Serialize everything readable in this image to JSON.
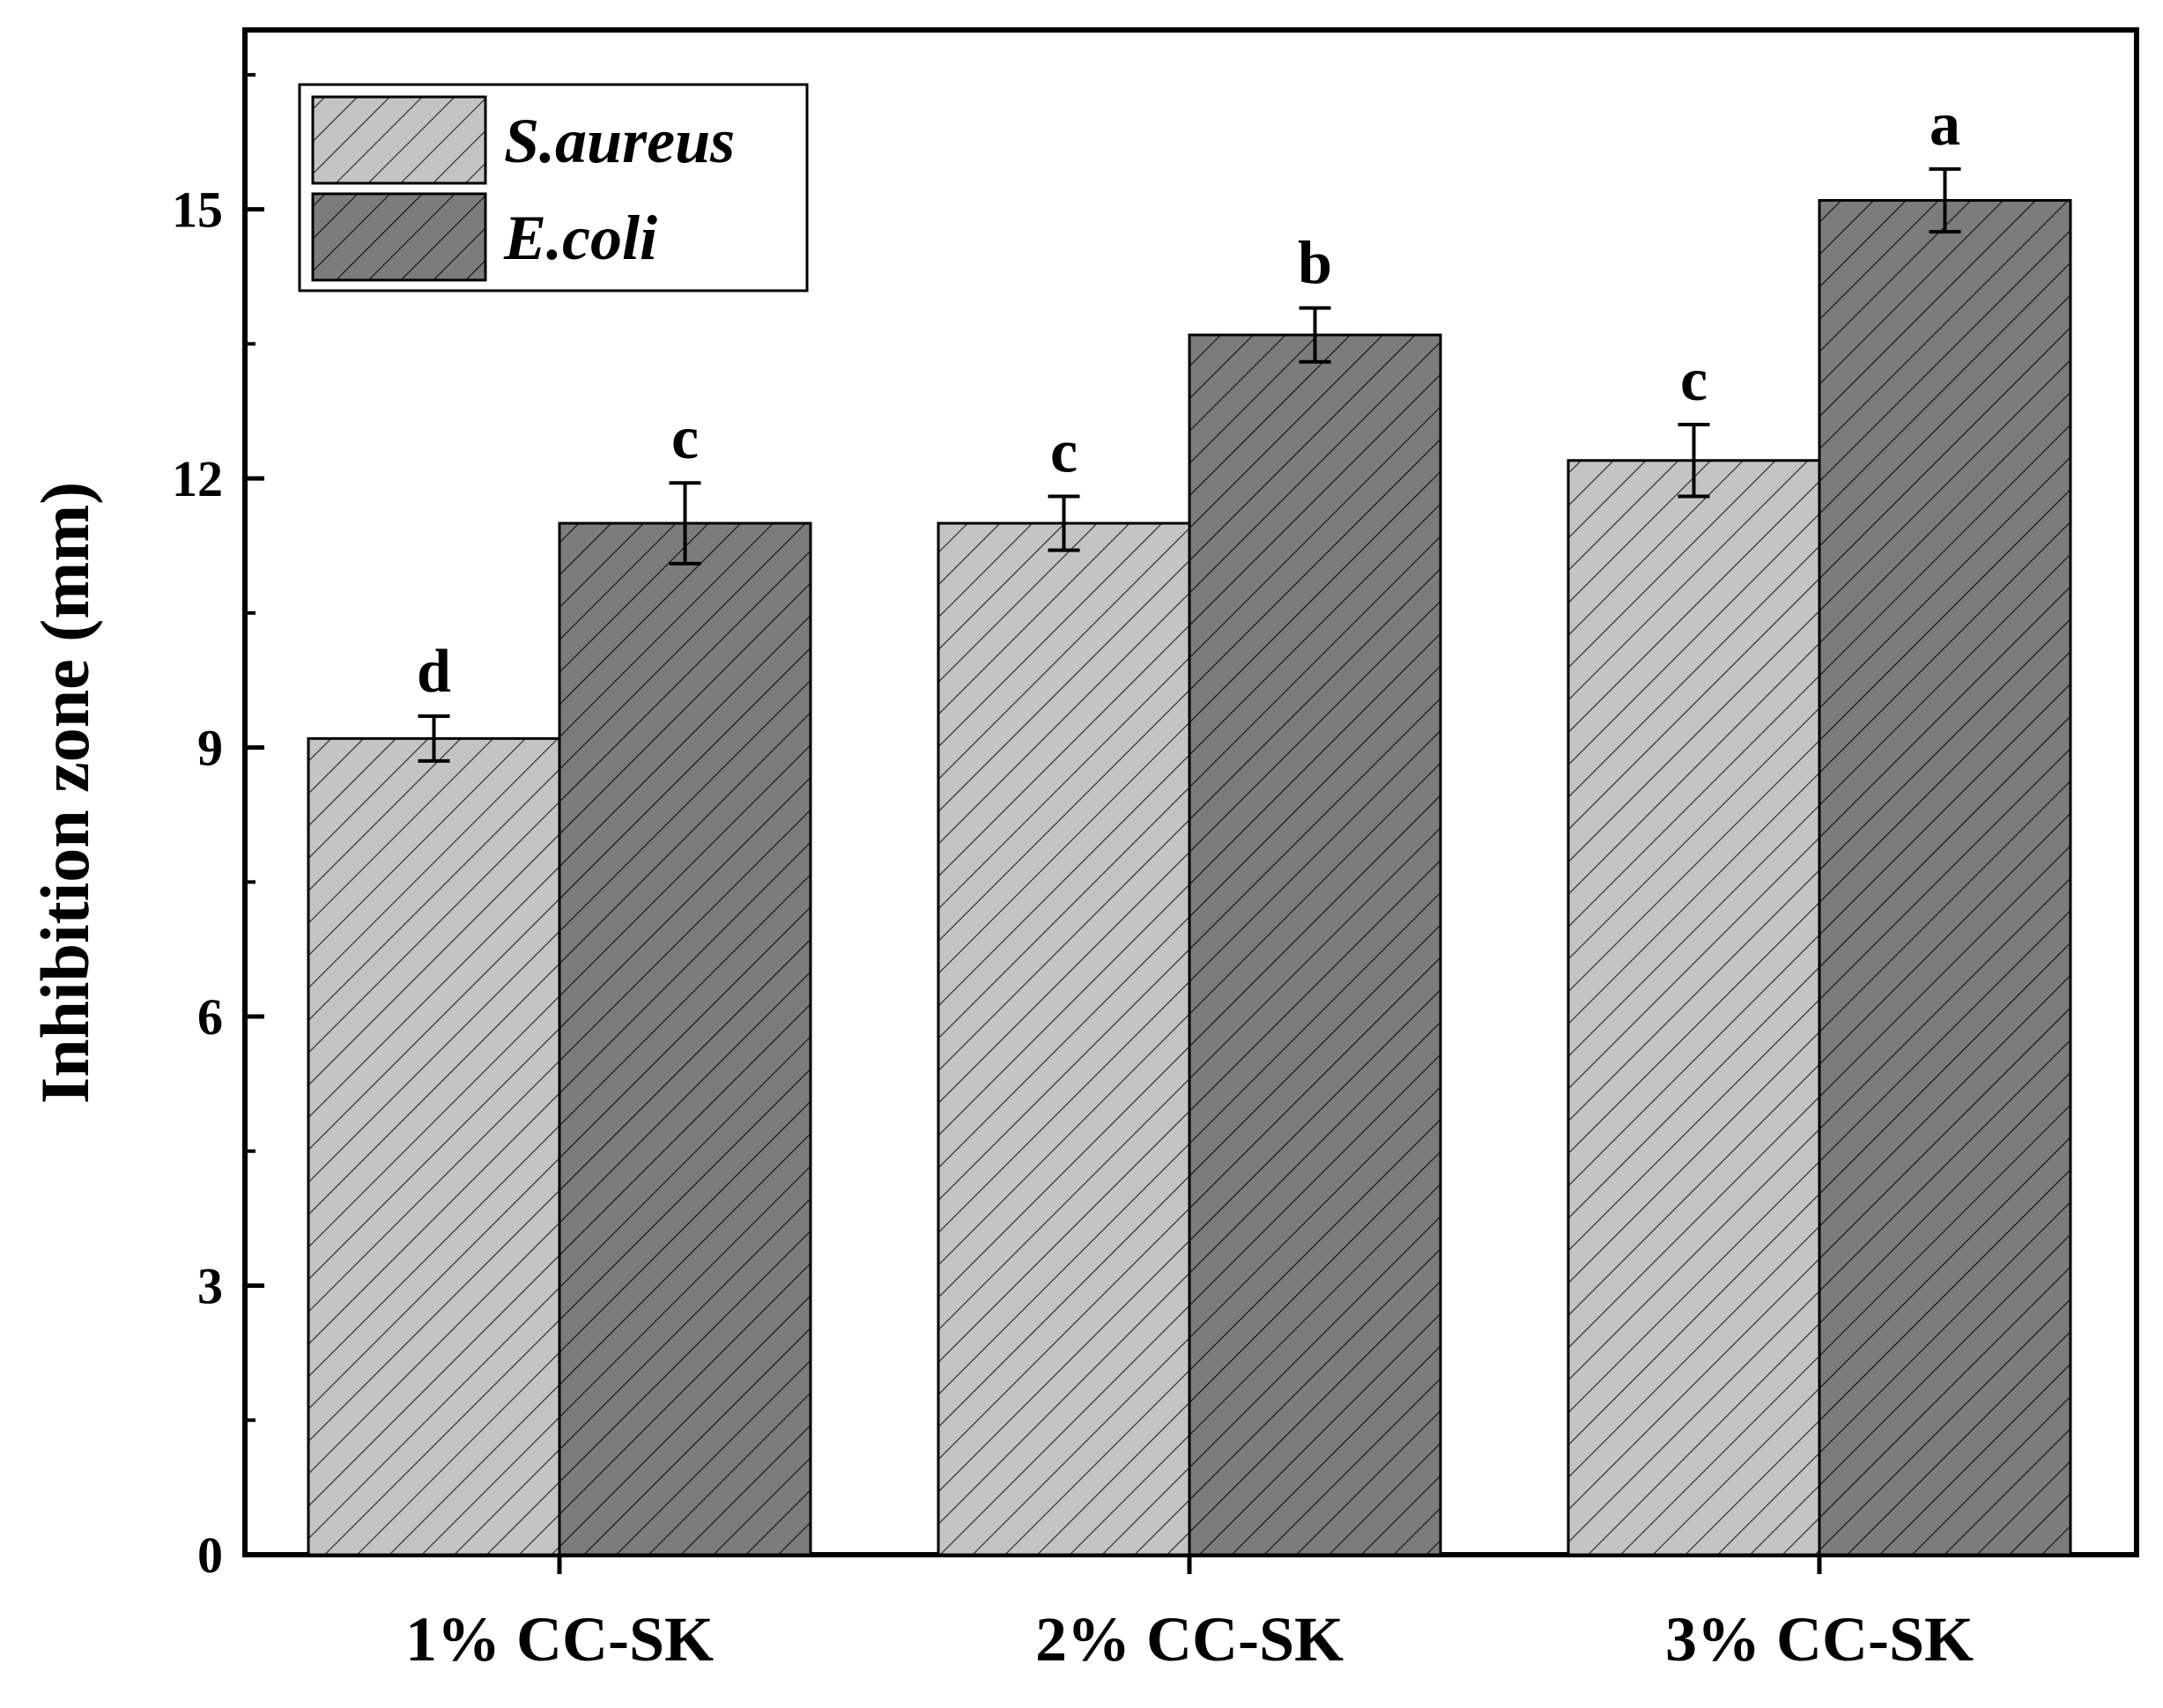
{
  "chart_data": {
    "type": "bar",
    "title": "",
    "xlabel": "",
    "ylabel": "Inhibition zone (mm)",
    "ylim": [
      0,
      17
    ],
    "yticks": [
      0,
      3,
      6,
      9,
      12,
      15
    ],
    "categories": [
      "1% CC-SK",
      "2% CC-SK",
      "3% CC-SK"
    ],
    "series": [
      {
        "name": "S.aureus",
        "color": "#c4c4c4",
        "values": [
          9.1,
          11.5,
          12.2
        ],
        "errors": [
          0.25,
          0.3,
          0.4
        ],
        "labels": [
          "d",
          "c",
          "c"
        ]
      },
      {
        "name": "E.coli",
        "color": "#7c7c7c",
        "values": [
          11.5,
          13.6,
          15.1
        ],
        "errors": [
          0.45,
          0.3,
          0.35
        ],
        "labels": [
          "c",
          "b",
          "a"
        ]
      }
    ],
    "legend_position": "top-left"
  }
}
